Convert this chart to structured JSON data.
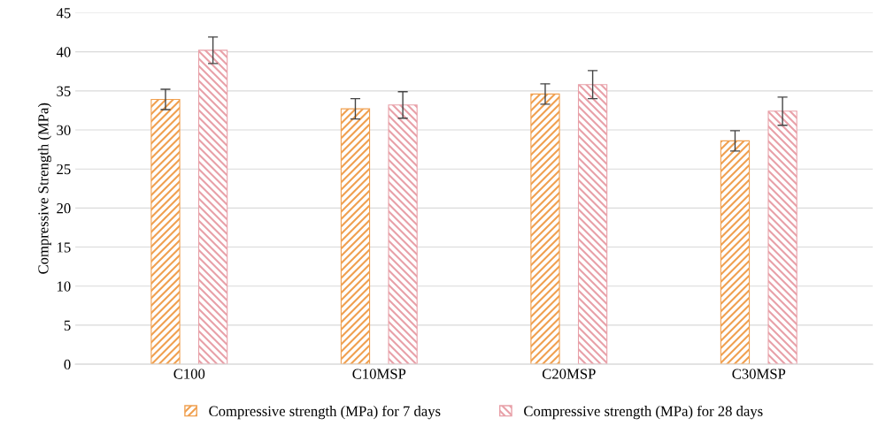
{
  "chart_data": {
    "type": "bar",
    "ylabel": "Compressive Strength (MPa)",
    "categories": [
      "C100",
      "C10MSP",
      "C20MSP",
      "C30MSP"
    ],
    "series": [
      {
        "name": "Compressive strength (MPa) for 7 days",
        "color": "#f0a050",
        "values": [
          33.9,
          32.7,
          34.6,
          28.6
        ],
        "errors": [
          1.3,
          1.3,
          1.3,
          1.3
        ]
      },
      {
        "name": "Compressive strength (MPa) for 28 days",
        "color": "#e8a0a8",
        "values": [
          40.2,
          33.2,
          35.8,
          32.4
        ],
        "errors": [
          1.7,
          1.7,
          1.8,
          1.8
        ]
      }
    ],
    "ylim": [
      0,
      45
    ],
    "yticks": [
      0,
      5,
      10,
      15,
      20,
      25,
      30,
      35,
      40,
      45
    ],
    "grid": "y",
    "legend": "bottom"
  }
}
